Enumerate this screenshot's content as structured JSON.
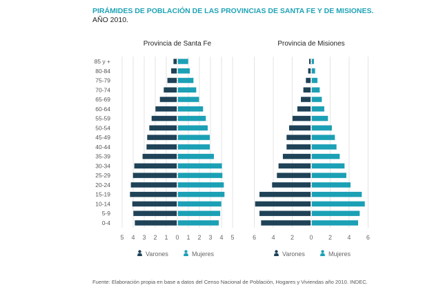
{
  "title": "PIRÁMIDES DE POBLACIÓN DE LAS PROVINCIAS DE SANTA FE Y DE MISIONES.",
  "subtitle": "AÑO 2010.",
  "source": "Fuente: Elaboración propia en base a datos del Censo Nacional de Población, Hogares y Viviendas año 2010. INDEC.",
  "colors": {
    "title": "#1fa3b6",
    "varones": "#1f4257",
    "mujeres": "#1ba0b5",
    "grid": "#e3e3e3",
    "text": "#555555"
  },
  "chart_data": [
    {
      "type": "bar",
      "orientation": "horizontal-pyramid",
      "title": "Provincia de Santa Fe",
      "categories": [
        "85 y +",
        "80-84",
        "75-79",
        "70-74",
        "65-69",
        "60-64",
        "55-59",
        "50-54",
        "45-49",
        "40-44",
        "35-39",
        "30-34",
        "25-29",
        "20-24",
        "15-19",
        "10-14",
        "5-9",
        "0-4"
      ],
      "series": [
        {
          "name": "Varones",
          "icon": "person-icon",
          "values": [
            0.35,
            0.56,
            0.9,
            1.23,
            1.58,
            1.98,
            2.33,
            2.54,
            2.73,
            2.79,
            3.15,
            3.9,
            4.02,
            4.21,
            4.29,
            4.08,
            3.98,
            3.85
          ]
        },
        {
          "name": "Mujeres",
          "icon": "person-icon",
          "values": [
            0.98,
            1.13,
            1.46,
            1.71,
            1.96,
            2.33,
            2.58,
            2.75,
            2.94,
            2.94,
            3.31,
            4.04,
            4.08,
            4.21,
            4.27,
            3.98,
            3.88,
            3.75
          ]
        }
      ],
      "xticks": [
        "5",
        "4",
        "3",
        "2",
        "1",
        "0",
        "1",
        "2",
        "3",
        "4",
        "5"
      ],
      "xlim": [
        -5,
        5
      ],
      "grid": true,
      "legend": "bottom"
    },
    {
      "type": "bar",
      "orientation": "horizontal-pyramid",
      "title": "Provincia de Misiones",
      "categories": [
        "85 y +",
        "80-84",
        "75-79",
        "70-74",
        "65-69",
        "60-64",
        "55-59",
        "50-54",
        "45-49",
        "40-44",
        "35-39",
        "30-34",
        "25-29",
        "20-24",
        "15-19",
        "10-14",
        "5-9",
        "0-4"
      ],
      "series": [
        {
          "name": "Varones",
          "icon": "person-icon",
          "values": [
            0.22,
            0.32,
            0.56,
            0.83,
            1.09,
            1.46,
            1.97,
            2.33,
            2.6,
            2.6,
            2.99,
            3.45,
            3.62,
            4.13,
            5.46,
            5.92,
            5.46,
            5.29
          ]
        },
        {
          "name": "Mujeres",
          "icon": "person-icon",
          "values": [
            0.29,
            0.41,
            0.66,
            0.9,
            1.12,
            1.38,
            1.77,
            2.18,
            2.5,
            2.67,
            3.01,
            3.52,
            3.71,
            4.15,
            5.34,
            5.66,
            5.12,
            4.95
          ]
        }
      ],
      "xticks": [
        "6",
        "4",
        "2",
        "0",
        "2",
        "4",
        "6"
      ],
      "xlim": [
        -6,
        6
      ],
      "grid": true,
      "legend": "bottom"
    }
  ]
}
